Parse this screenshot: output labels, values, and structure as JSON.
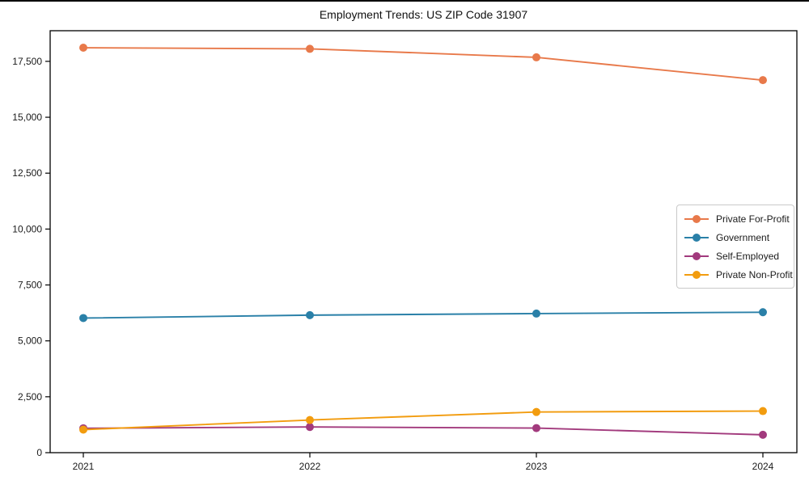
{
  "figure": {
    "title": "Employment Trends: US ZIP Code 31907"
  },
  "chart_data": {
    "type": "line",
    "title": "Employment Trends: US ZIP Code 31907",
    "categories": [
      "2021",
      "2022",
      "2023",
      "2024"
    ],
    "series": [
      {
        "name": "Private For-Profit",
        "color": "#e8794a",
        "values": [
          18110,
          18060,
          17680,
          16660
        ]
      },
      {
        "name": "Government",
        "color": "#2a80a8",
        "values": [
          6020,
          6150,
          6220,
          6280
        ]
      },
      {
        "name": "Self-Employed",
        "color": "#a23a7d",
        "values": [
          1090,
          1150,
          1100,
          800
        ]
      },
      {
        "name": "Private Non-Profit",
        "color": "#f29c0f",
        "values": [
          1030,
          1460,
          1820,
          1860
        ]
      }
    ],
    "xlabel": "",
    "ylabel": "",
    "ylim": [
      0,
      18870
    ],
    "yticks": [
      0,
      2500,
      5000,
      7500,
      10000,
      12500,
      15000,
      17500
    ],
    "ytick_labels": [
      "0",
      "2,500",
      "5,000",
      "7,500",
      "10,000",
      "12,500",
      "15,000",
      "17,500"
    ],
    "grid": false,
    "legend": {
      "position": "middle-right"
    },
    "frame_color": "#000000",
    "tick_label_color": "#1a1a1a"
  }
}
